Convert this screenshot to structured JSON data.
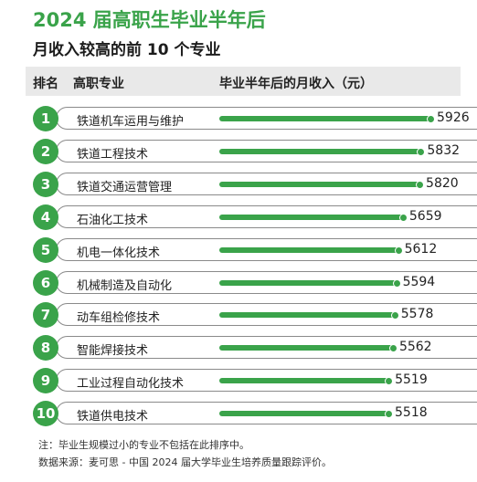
{
  "header": {
    "title": "2024 届高职生毕业半年后",
    "subtitle": "月收入较高的前 10 个专业"
  },
  "table_header": {
    "rank": "排名",
    "major": "高职专业",
    "salary": "毕业半年后的月收入（元）"
  },
  "footnotes": {
    "note": "注：毕业生规模过小的专业不包括在此排序中。",
    "source": "数据来源：麦可思 - 中国 2024 届大学毕业生培养质量跟踪评价。"
  },
  "colors": {
    "accent": "#3aa34a"
  },
  "chart_data": {
    "type": "bar",
    "orientation": "horizontal",
    "title": "2024 届高职生毕业半年后",
    "subtitle": "月收入较高的前 10 个专业",
    "ranks": [
      "1",
      "2",
      "3",
      "4",
      "5",
      "6",
      "7",
      "8",
      "9",
      "10"
    ],
    "categories": [
      "铁道机车运用与维护",
      "铁道工程技术",
      "铁道交通运营管理",
      "石油化工技术",
      "机电一体化技术",
      "机械制造及自动化",
      "动车组检修技术",
      "智能焊接技术",
      "工业过程自动化技术",
      "铁道供电技术"
    ],
    "values": [
      5926,
      5832,
      5820,
      5659,
      5612,
      5594,
      5578,
      5562,
      5519,
      5518
    ],
    "labels": [
      "5926",
      "5832",
      "5820",
      "5659",
      "5612",
      "5594",
      "5578",
      "5562",
      "5519",
      "5518"
    ],
    "ylabel": "毕业半年后的月收入（元）"
  }
}
